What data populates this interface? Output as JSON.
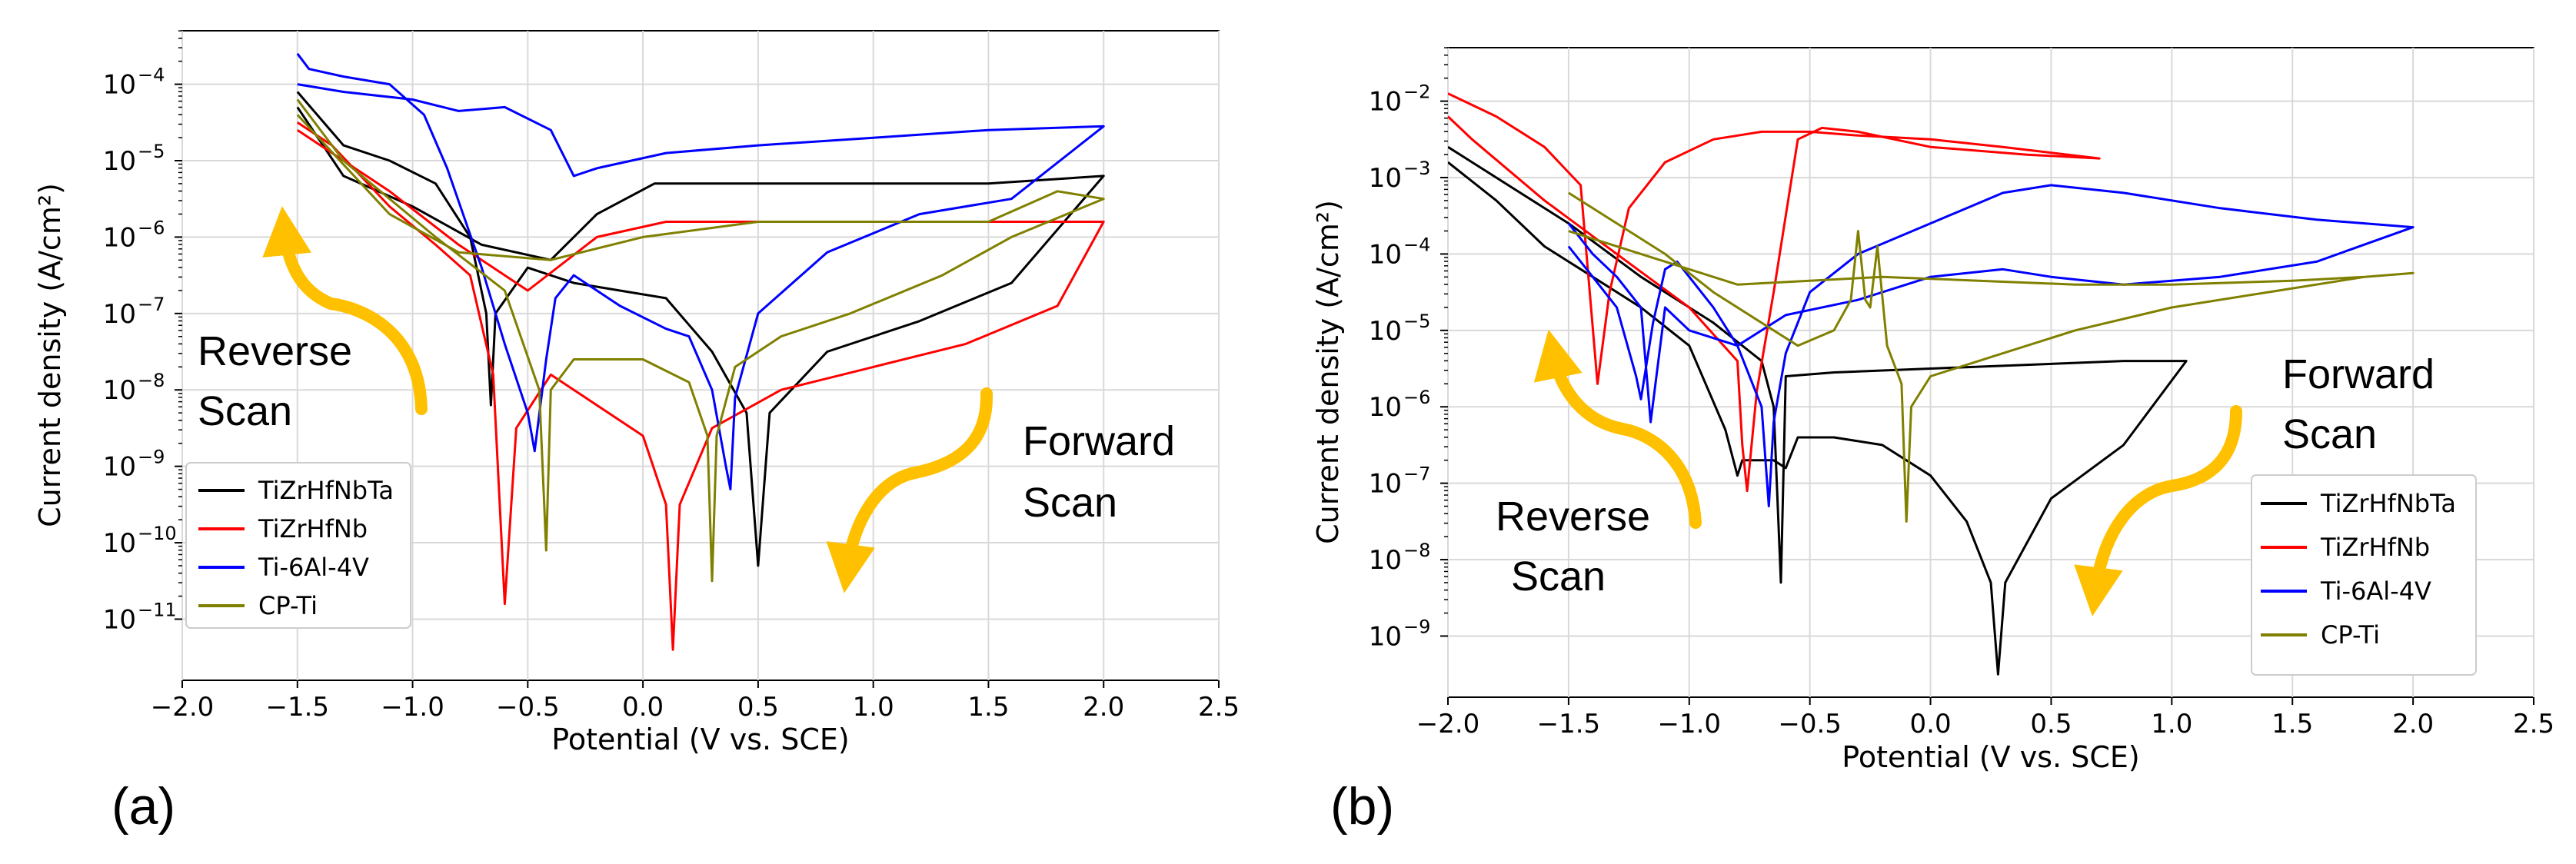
{
  "chart_data": [
    {
      "id": "a",
      "type": "line",
      "panel_label": "(a)",
      "xlabel": "Potential (V vs. SCE)",
      "ylabel": "Current density (A/cm²)",
      "xlim": [
        -2.0,
        2.5
      ],
      "ylim_log10": [
        -11.8,
        -3.3
      ],
      "xticks": [
        -2.0,
        -1.5,
        -1.0,
        -0.5,
        0.0,
        0.5,
        1.0,
        1.5,
        2.0,
        2.5
      ],
      "xtick_labels": [
        "−2.0",
        "−1.5",
        "−1.0",
        "−0.5",
        "0.0",
        "0.5",
        "1.0",
        "1.5",
        "2.0",
        "2.5"
      ],
      "yticks_exp": [
        -11,
        -10,
        -9,
        -8,
        -7,
        -6,
        -5,
        -4
      ],
      "ytick_labels": [
        "10",
        "10",
        "10",
        "10",
        "10",
        "10",
        "10",
        "10"
      ],
      "ytick_superscripts": [
        "−11",
        "−10",
        "−9",
        "−8",
        "−7",
        "−6",
        "−5",
        "−4"
      ],
      "grid": true,
      "legend_position": "lower-left",
      "annotations": {
        "reverse": [
          "Reverse",
          "Scan"
        ],
        "forward": [
          "Forward",
          "Scan"
        ]
      },
      "series": [
        {
          "name": "TiZrHfNbTa",
          "color": "#000000",
          "x": [
            -1.5,
            -1.3,
            -1.1,
            -0.9,
            -0.75,
            -0.68,
            -0.66,
            -0.64,
            -0.5,
            -0.3,
            -0.1,
            0.1,
            0.3,
            0.45,
            0.5,
            0.55,
            0.8,
            1.2,
            1.6,
            2.0,
            1.5,
            1.0,
            0.5,
            0.05,
            -0.2,
            -0.4,
            -0.7,
            -1.0,
            -1.3,
            -1.5
          ],
          "y": [
            -4.1,
            -4.8,
            -5.0,
            -5.3,
            -6.0,
            -7.0,
            -8.2,
            -7.0,
            -6.4,
            -6.6,
            -6.7,
            -6.8,
            -7.5,
            -8.3,
            -10.3,
            -8.3,
            -7.5,
            -7.1,
            -6.6,
            -5.2,
            -5.3,
            -5.3,
            -5.3,
            -5.3,
            -5.7,
            -6.3,
            -6.1,
            -5.6,
            -5.2,
            -4.3
          ]
        },
        {
          "name": "TiZrHfNb",
          "color": "#ff0000",
          "x": [
            -1.5,
            -1.35,
            -1.1,
            -0.9,
            -0.75,
            -0.65,
            -0.6,
            -0.55,
            -0.4,
            -0.2,
            0.0,
            0.1,
            0.13,
            0.16,
            0.3,
            0.6,
            1.0,
            1.4,
            1.8,
            2.0,
            1.5,
            1.0,
            0.5,
            0.1,
            -0.2,
            -0.5,
            -0.8,
            -1.1,
            -1.5
          ],
          "y": [
            -4.5,
            -4.8,
            -5.6,
            -6.1,
            -6.5,
            -7.8,
            -10.8,
            -8.5,
            -7.8,
            -8.2,
            -8.6,
            -9.5,
            -11.4,
            -9.5,
            -8.5,
            -8.0,
            -7.7,
            -7.4,
            -6.9,
            -5.8,
            -5.8,
            -5.8,
            -5.8,
            -5.8,
            -6.0,
            -6.7,
            -6.1,
            -5.4,
            -4.6
          ]
        },
        {
          "name": "Ti-6Al-4V",
          "color": "#0000ff",
          "x": [
            -1.5,
            -1.45,
            -1.3,
            -1.1,
            -0.95,
            -0.85,
            -0.7,
            -0.6,
            -0.5,
            -0.47,
            -0.42,
            -0.38,
            -0.3,
            -0.1,
            0.1,
            0.2,
            0.3,
            0.36,
            0.38,
            0.4,
            0.5,
            0.8,
            1.2,
            1.6,
            2.0,
            1.5,
            1.0,
            0.5,
            0.1,
            -0.2,
            -0.3,
            -0.4,
            -0.6,
            -0.8,
            -1.0,
            -1.3,
            -1.5
          ],
          "y": [
            -3.6,
            -3.8,
            -3.9,
            -4.0,
            -4.4,
            -5.1,
            -6.4,
            -7.4,
            -8.3,
            -8.8,
            -7.6,
            -6.8,
            -6.5,
            -6.9,
            -7.2,
            -7.3,
            -8.0,
            -9.0,
            -9.3,
            -8.1,
            -7.0,
            -6.2,
            -5.7,
            -5.5,
            -4.55,
            -4.6,
            -4.7,
            -4.8,
            -4.9,
            -5.1,
            -5.2,
            -4.6,
            -4.3,
            -4.35,
            -4.2,
            -4.1,
            -4.0
          ]
        },
        {
          "name": "CP-Ti",
          "color": "#808000",
          "x": [
            -1.5,
            -1.3,
            -1.1,
            -0.9,
            -0.6,
            -0.45,
            -0.42,
            -0.4,
            -0.3,
            0.0,
            0.2,
            0.28,
            0.3,
            0.32,
            0.4,
            0.6,
            0.9,
            1.3,
            1.6,
            2.0,
            1.8,
            1.5,
            1.0,
            0.5,
            0.0,
            -0.4,
            -0.8,
            -1.1,
            -1.5
          ],
          "y": [
            -4.2,
            -5.0,
            -5.5,
            -6.0,
            -6.7,
            -8.0,
            -10.1,
            -8.0,
            -7.6,
            -7.6,
            -7.9,
            -8.6,
            -10.5,
            -8.6,
            -7.7,
            -7.3,
            -7.0,
            -6.5,
            -6.0,
            -5.5,
            -5.4,
            -5.8,
            -5.8,
            -5.8,
            -6.0,
            -6.3,
            -6.2,
            -5.7,
            -4.4
          ]
        }
      ]
    },
    {
      "id": "b",
      "type": "line",
      "panel_label": "(b)",
      "xlabel": "Potential (V vs. SCE)",
      "ylabel": "Current density (A/cm²)",
      "xlim": [
        -2.0,
        2.5
      ],
      "ylim_log10": [
        -9.8,
        -1.3
      ],
      "xticks": [
        -2.0,
        -1.5,
        -1.0,
        -0.5,
        0.0,
        0.5,
        1.0,
        1.5,
        2.0,
        2.5
      ],
      "xtick_labels": [
        "−2.0",
        "−1.5",
        "−1.0",
        "−0.5",
        "0.0",
        "0.5",
        "1.0",
        "1.5",
        "2.0",
        "2.5"
      ],
      "yticks_exp": [
        -9,
        -8,
        -7,
        -6,
        -5,
        -4,
        -3,
        -2
      ],
      "ytick_labels": [
        "10",
        "10",
        "10",
        "10",
        "10",
        "10",
        "10",
        "10"
      ],
      "ytick_superscripts": [
        "−9",
        "−8",
        "−7",
        "−6",
        "−5",
        "−4",
        "−3",
        "−2"
      ],
      "grid": true,
      "legend_position": "lower-right",
      "annotations": {
        "reverse": [
          "Reverse",
          "Scan"
        ],
        "forward": [
          "Forward",
          "Scan"
        ]
      },
      "series": [
        {
          "name": "TiZrHfNbTa",
          "color": "#000000",
          "x": [
            -2.0,
            -1.8,
            -1.6,
            -1.4,
            -1.2,
            -1.0,
            -0.85,
            -0.8,
            -0.78,
            -0.72,
            -0.65,
            -0.6,
            -0.55,
            -0.4,
            -0.2,
            0.0,
            0.15,
            0.25,
            0.28,
            0.31,
            0.5,
            0.8,
            1.06,
            0.8,
            0.4,
            0.0,
            -0.4,
            -0.6,
            -0.62,
            -0.65,
            -0.7,
            -0.9,
            -1.2,
            -1.5,
            -1.8,
            -2.0
          ],
          "y": [
            -2.8,
            -3.3,
            -3.9,
            -4.3,
            -4.7,
            -5.2,
            -6.3,
            -6.9,
            -6.7,
            -6.7,
            -6.7,
            -6.8,
            -6.4,
            -6.4,
            -6.5,
            -6.9,
            -7.5,
            -8.3,
            -9.5,
            -8.3,
            -7.2,
            -6.5,
            -5.4,
            -5.4,
            -5.45,
            -5.5,
            -5.55,
            -5.6,
            -8.3,
            -6.0,
            -5.4,
            -4.9,
            -4.3,
            -3.6,
            -3.0,
            -2.6
          ]
        },
        {
          "name": "TiZrHfNb",
          "color": "#ff0000",
          "x": [
            -2.0,
            -1.8,
            -1.6,
            -1.45,
            -1.38,
            -1.33,
            -1.25,
            -1.1,
            -0.9,
            -0.7,
            -0.5,
            -0.3,
            0.0,
            0.3,
            0.7,
            0.4,
            0.0,
            -0.3,
            -0.45,
            -0.55,
            -0.65,
            -0.72,
            -0.76,
            -0.78,
            -0.8,
            -1.0,
            -1.3,
            -1.6,
            -1.9,
            -2.0
          ],
          "y": [
            -1.9,
            -2.2,
            -2.6,
            -3.1,
            -5.7,
            -4.5,
            -3.4,
            -2.8,
            -2.5,
            -2.4,
            -2.4,
            -2.45,
            -2.5,
            -2.6,
            -2.75,
            -2.7,
            -2.6,
            -2.4,
            -2.35,
            -2.5,
            -4.5,
            -5.8,
            -7.1,
            -6.5,
            -5.4,
            -4.7,
            -4.0,
            -3.3,
            -2.5,
            -2.2
          ]
        },
        {
          "name": "Ti-6Al-4V",
          "color": "#0000ff",
          "x": [
            -1.5,
            -1.4,
            -1.3,
            -1.22,
            -1.2,
            -1.15,
            -1.1,
            -1.05,
            -1.0,
            -0.9,
            -0.8,
            -0.7,
            -0.67,
            -0.65,
            -0.6,
            -0.5,
            -0.3,
            0.0,
            0.3,
            0.5,
            0.8,
            1.2,
            1.6,
            2.0,
            1.6,
            1.2,
            0.8,
            0.5,
            0.3,
            0.0,
            -0.3,
            -0.6,
            -0.8,
            -1.0,
            -1.1,
            -1.16,
            -1.2,
            -1.3,
            -1.4,
            -1.5
          ],
          "y": [
            -3.9,
            -4.3,
            -4.7,
            -5.6,
            -5.9,
            -4.9,
            -4.2,
            -4.1,
            -4.3,
            -4.7,
            -5.2,
            -6.0,
            -7.3,
            -6.2,
            -5.3,
            -4.5,
            -4.0,
            -3.6,
            -3.2,
            -3.1,
            -3.2,
            -3.4,
            -3.55,
            -3.65,
            -4.1,
            -4.3,
            -4.4,
            -4.3,
            -4.2,
            -4.3,
            -4.6,
            -4.8,
            -5.2,
            -5.0,
            -4.7,
            -6.2,
            -4.7,
            -4.3,
            -4.0,
            -3.6
          ]
        },
        {
          "name": "CP-Ti",
          "color": "#808000",
          "x": [
            -1.5,
            -1.3,
            -1.1,
            -0.9,
            -0.7,
            -0.55,
            -0.4,
            -0.33,
            -0.3,
            -0.27,
            -0.25,
            -0.22,
            -0.18,
            -0.12,
            -0.1,
            -0.08,
            0.0,
            0.3,
            0.6,
            1.0,
            1.4,
            1.8,
            2.0,
            1.8,
            1.5,
            1.0,
            0.6,
            0.2,
            -0.2,
            -0.5,
            -0.8,
            -1.0,
            -1.2,
            -1.5
          ],
          "y": [
            -3.2,
            -3.6,
            -4.0,
            -4.5,
            -4.9,
            -5.2,
            -5.0,
            -4.6,
            -3.7,
            -4.6,
            -4.7,
            -3.9,
            -5.2,
            -5.7,
            -7.5,
            -6.0,
            -5.6,
            -5.3,
            -5.0,
            -4.7,
            -4.5,
            -4.3,
            -4.25,
            -4.3,
            -4.35,
            -4.4,
            -4.4,
            -4.35,
            -4.3,
            -4.35,
            -4.4,
            -4.2,
            -4.0,
            -3.7
          ]
        }
      ]
    }
  ]
}
